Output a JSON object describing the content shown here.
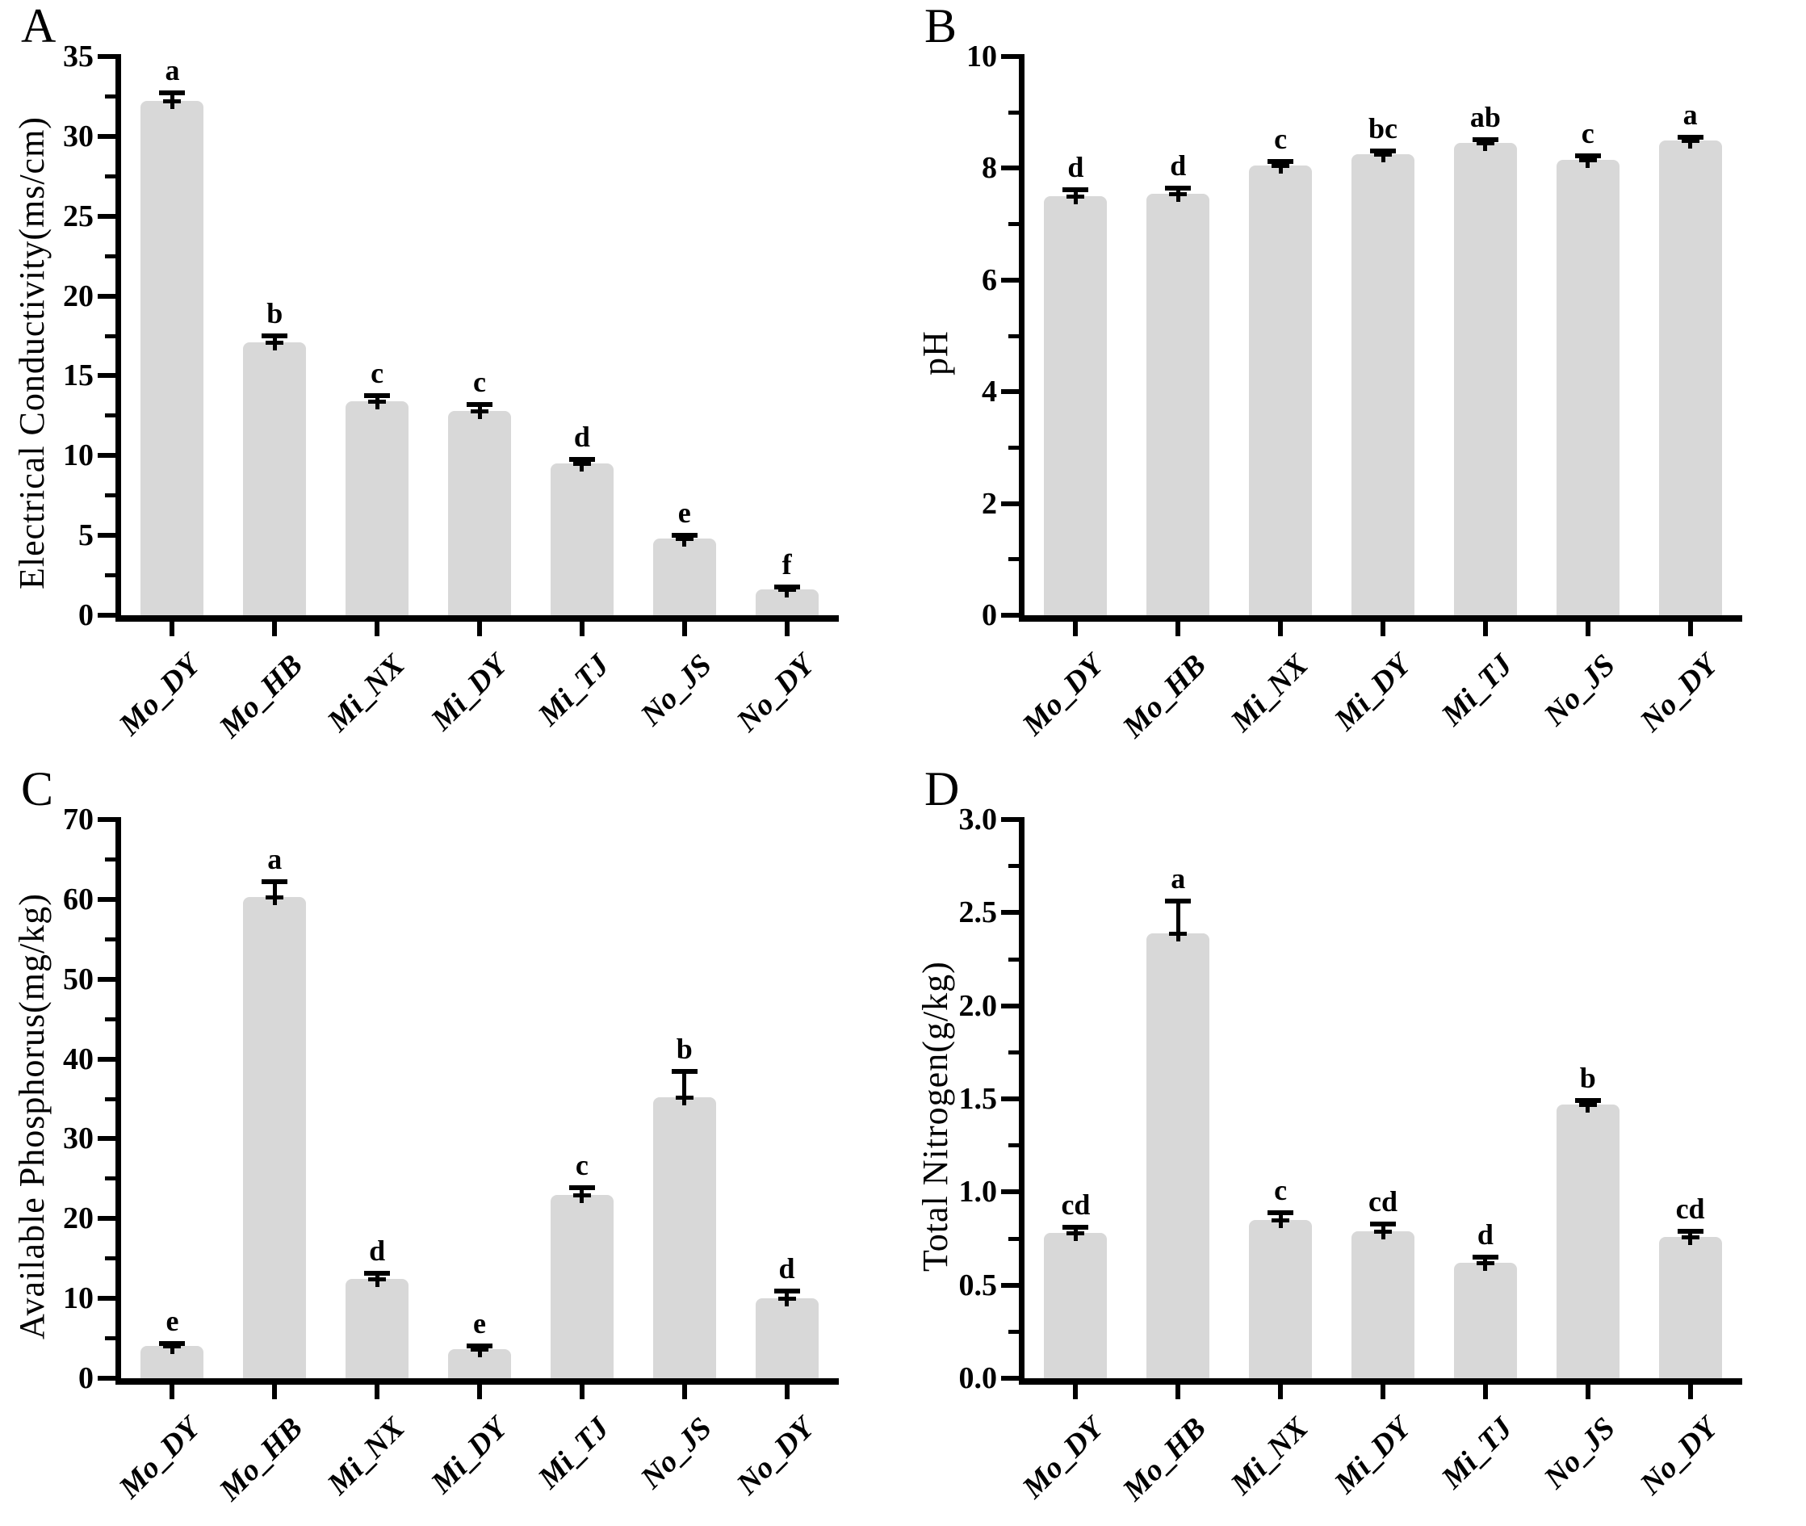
{
  "figure": {
    "description_visible_text_only": true,
    "bar_color": "#d8d8d8",
    "axis_color": "#000000",
    "categories": [
      "Mo_DY",
      "Mo_HB",
      "Mi_NX",
      "Mi_DY",
      "Mi_TJ",
      "No_JS",
      "No_DY"
    ]
  },
  "chart_data": [
    {
      "panel_label": "A",
      "type": "bar",
      "title": "",
      "xlabel": "",
      "ylabel": "Electrical Conductivity(ms/cm)",
      "ylim": [
        0,
        35
      ],
      "ytick_step": 5,
      "ytick_labels": [
        "0",
        "5",
        "10",
        "15",
        "20",
        "25",
        "30",
        "35"
      ],
      "minor_ticks": true,
      "grid": false,
      "legend": "none",
      "bar_color": "#d8d8d8",
      "categories": [
        "Mo_DY",
        "Mo_HB",
        "Mi_NX",
        "Mi_DY",
        "Mi_TJ",
        "No_JS",
        "No_DY"
      ],
      "values": [
        32.2,
        17.1,
        13.4,
        12.8,
        9.5,
        4.8,
        1.6
      ],
      "errors": [
        0.5,
        0.4,
        0.35,
        0.4,
        0.25,
        0.2,
        0.15
      ],
      "sig_letters": [
        "a",
        "b",
        "c",
        "c",
        "d",
        "e",
        "f"
      ]
    },
    {
      "panel_label": "B",
      "type": "bar",
      "title": "",
      "xlabel": "",
      "ylabel": "pH",
      "ylim": [
        0,
        10
      ],
      "ytick_step": 2,
      "ytick_labels": [
        "0",
        "2",
        "4",
        "6",
        "8",
        "10"
      ],
      "minor_ticks": true,
      "grid": false,
      "legend": "none",
      "bar_color": "#d8d8d8",
      "categories": [
        "Mo_DY",
        "Mo_HB",
        "Mi_NX",
        "Mi_DY",
        "Mi_TJ",
        "No_JS",
        "No_DY"
      ],
      "values": [
        7.5,
        7.55,
        8.05,
        8.25,
        8.45,
        8.15,
        8.5
      ],
      "errors": [
        0.12,
        0.1,
        0.07,
        0.06,
        0.06,
        0.07,
        0.06
      ],
      "sig_letters": [
        "d",
        "d",
        "c",
        "bc",
        "ab",
        "c",
        "a"
      ]
    },
    {
      "panel_label": "C",
      "type": "bar",
      "title": "",
      "xlabel": "",
      "ylabel": "Available Phosphorus(mg/kg)",
      "ylim": [
        0,
        70
      ],
      "ytick_step": 10,
      "ytick_labels": [
        "0",
        "10",
        "20",
        "30",
        "40",
        "50",
        "60",
        "70"
      ],
      "minor_ticks": true,
      "grid": false,
      "legend": "none",
      "bar_color": "#d8d8d8",
      "categories": [
        "Mo_DY",
        "Mo_HB",
        "Mi_NX",
        "Mi_DY",
        "Mi_TJ",
        "No_JS",
        "No_DY"
      ],
      "values": [
        4.0,
        60.3,
        12.4,
        3.6,
        23.0,
        35.2,
        10.0
      ],
      "errors": [
        0.4,
        1.9,
        0.8,
        0.4,
        0.9,
        3.2,
        0.9
      ],
      "sig_letters": [
        "e",
        "a",
        "d",
        "e",
        "c",
        "b",
        "d"
      ]
    },
    {
      "panel_label": "D",
      "type": "bar",
      "title": "",
      "xlabel": "",
      "ylabel": "Total Nitrogen(g/kg)",
      "ylim": [
        0,
        3
      ],
      "ytick_step": 0.5,
      "ytick_labels": [
        "0.0",
        "0.5",
        "1.0",
        "1.5",
        "2.0",
        "2.5",
        "3.0"
      ],
      "minor_ticks": true,
      "grid": false,
      "legend": "none",
      "bar_color": "#d8d8d8",
      "categories": [
        "Mo_DY",
        "Mo_HB",
        "Mi_NX",
        "Mi_DY",
        "Mi_TJ",
        "No_JS",
        "No_DY"
      ],
      "values": [
        0.78,
        2.39,
        0.85,
        0.79,
        0.62,
        1.47,
        0.76
      ],
      "errors": [
        0.03,
        0.17,
        0.04,
        0.04,
        0.03,
        0.02,
        0.03
      ],
      "sig_letters": [
        "cd",
        "a",
        "c",
        "cd",
        "d",
        "b",
        "cd"
      ]
    }
  ]
}
